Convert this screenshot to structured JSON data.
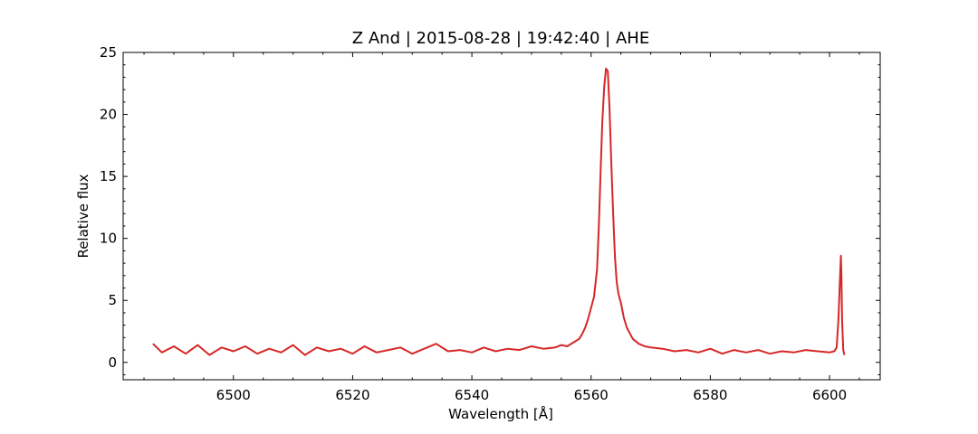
{
  "chart_data": {
    "type": "line",
    "title": "Z And | 2015-08-28 | 19:42:40 | AHE",
    "xlabel": "Wavelength [Å]",
    "ylabel": "Relative flux",
    "xlim": [
      6481.5,
      6608.5
    ],
    "ylim": [
      -1.4,
      25
    ],
    "xticks": [
      6500,
      6520,
      6540,
      6560,
      6580,
      6600
    ],
    "yticks": [
      0,
      5,
      10,
      15,
      20,
      25
    ],
    "xtick_labels": [
      "6500",
      "6520",
      "6540",
      "6560",
      "6580",
      "6600"
    ],
    "ytick_labels": [
      "0",
      "5",
      "10",
      "15",
      "20",
      "25"
    ],
    "grid": false,
    "legend": "none",
    "x_range": [
      6486.5,
      6602.5
    ],
    "series": [
      {
        "color": "#d62728",
        "x": [
          6486.5,
          6488.0,
          6490.0,
          6492.0,
          6494.0,
          6496.0,
          6498.0,
          6500.0,
          6502.0,
          6504.0,
          6506.0,
          6508.0,
          6510.0,
          6512.0,
          6514.0,
          6516.0,
          6518.0,
          6520.0,
          6522.0,
          6524.0,
          6526.0,
          6528.0,
          6530.0,
          6532.0,
          6534.0,
          6536.0,
          6538.0,
          6540.0,
          6542.0,
          6544.0,
          6546.0,
          6548.0,
          6550.0,
          6552.0,
          6554.0,
          6555.0,
          6556.0,
          6557.0,
          6558.0,
          6558.5,
          6559.0,
          6559.5,
          6560.0,
          6560.5,
          6561.0,
          6561.3,
          6561.6,
          6561.9,
          6562.2,
          6562.5,
          6562.8,
          6563.1,
          6563.4,
          6563.7,
          6564.0,
          6564.3,
          6564.6,
          6565.0,
          6565.5,
          6566.0,
          6567.0,
          6568.0,
          6569.0,
          6570.0,
          6572.0,
          6574.0,
          6576.0,
          6578.0,
          6580.0,
          6582.0,
          6584.0,
          6586.0,
          6588.0,
          6590.0,
          6592.0,
          6594.0,
          6596.0,
          6598.0,
          6600.0,
          6600.8,
          6601.2,
          6601.5,
          6601.7,
          6601.9,
          6602.0,
          6602.1,
          6602.3,
          6602.5
        ],
        "y": [
          1.5,
          0.8,
          1.3,
          0.7,
          1.4,
          0.6,
          1.2,
          0.9,
          1.3,
          0.7,
          1.1,
          0.8,
          1.4,
          0.6,
          1.2,
          0.9,
          1.1,
          0.7,
          1.3,
          0.8,
          1.0,
          1.2,
          0.7,
          1.1,
          1.5,
          0.9,
          1.0,
          0.8,
          1.2,
          0.9,
          1.1,
          1.0,
          1.3,
          1.1,
          1.2,
          1.4,
          1.3,
          1.6,
          1.9,
          2.3,
          2.8,
          3.5,
          4.4,
          5.3,
          7.5,
          11.0,
          15.5,
          19.5,
          22.2,
          23.7,
          23.5,
          20.5,
          16.0,
          12.0,
          8.5,
          6.5,
          5.5,
          4.8,
          3.6,
          2.8,
          1.9,
          1.5,
          1.3,
          1.2,
          1.1,
          0.9,
          1.0,
          0.8,
          1.1,
          0.7,
          1.0,
          0.8,
          1.0,
          0.7,
          0.9,
          0.8,
          1.0,
          0.9,
          0.8,
          0.9,
          1.2,
          3.5,
          6.0,
          8.6,
          7.0,
          3.5,
          1.0,
          0.6
        ]
      }
    ]
  }
}
